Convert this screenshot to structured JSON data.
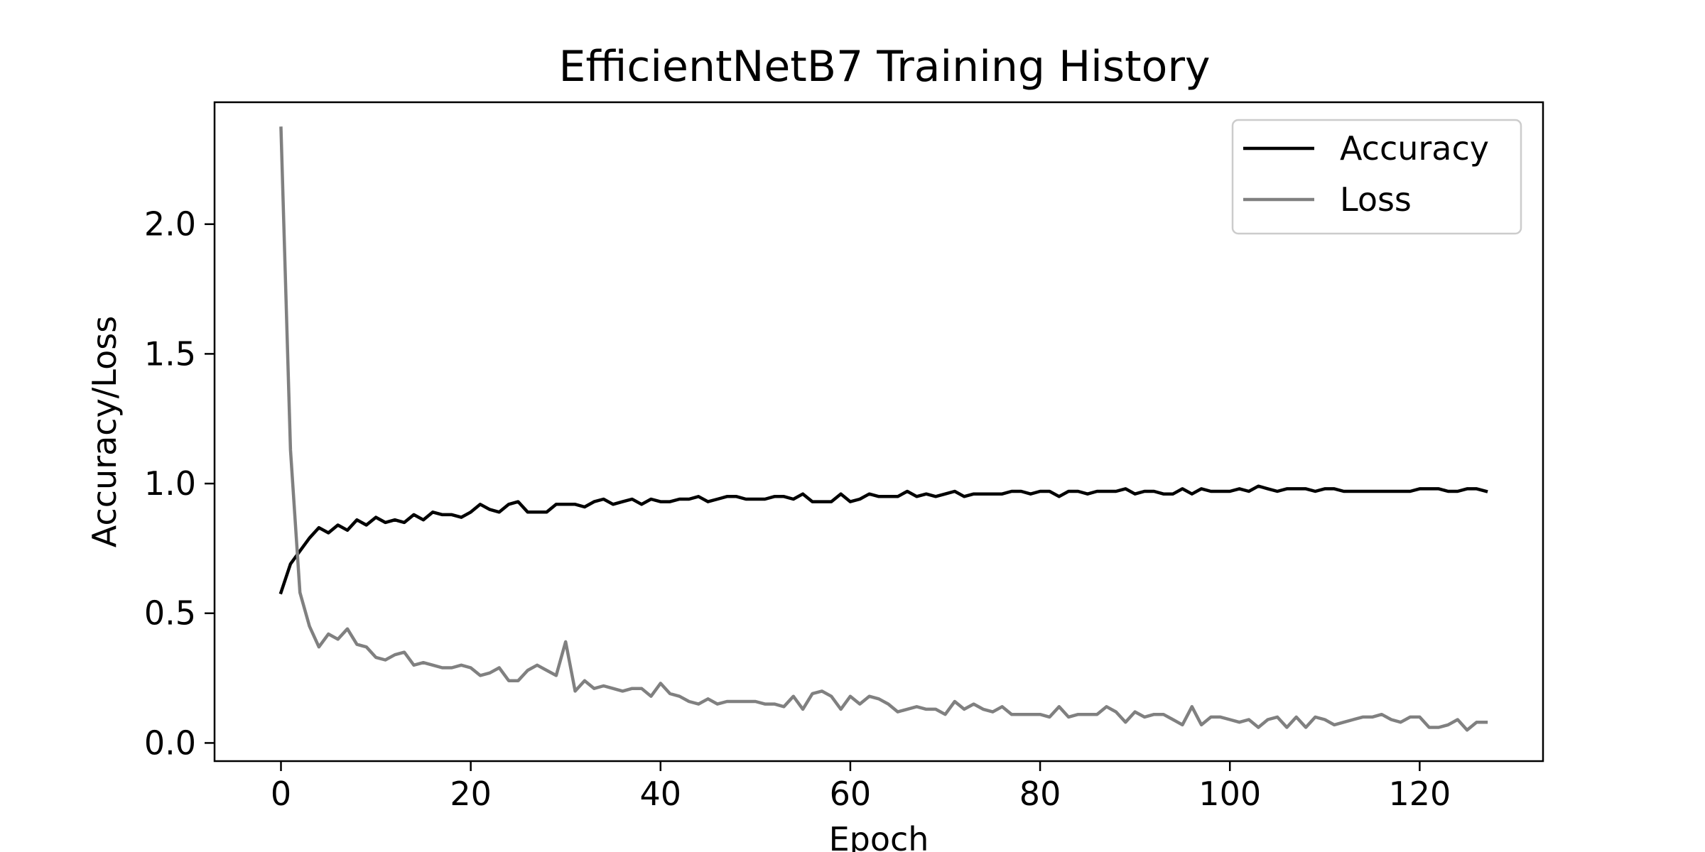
{
  "chart_data": {
    "type": "line",
    "title": "EfficientNetB7 Training History",
    "xlabel": "Epoch",
    "ylabel": "Accuracy/Loss",
    "xlim": [
      -7,
      133
    ],
    "ylim": [
      -0.07,
      2.47
    ],
    "xticks": [
      0,
      20,
      40,
      60,
      80,
      100,
      120
    ],
    "xtick_labels": [
      "0",
      "20",
      "40",
      "60",
      "80",
      "100",
      "120"
    ],
    "yticks": [
      0.0,
      0.5,
      1.0,
      1.5,
      2.0
    ],
    "ytick_labels": [
      "0.0",
      "0.5",
      "1.0",
      "1.5",
      "2.0"
    ],
    "grid": false,
    "legend_position": "top-right",
    "series": [
      {
        "name": "Accuracy",
        "color": "#000000",
        "values": [
          0.58,
          0.69,
          0.74,
          0.79,
          0.83,
          0.81,
          0.84,
          0.82,
          0.86,
          0.84,
          0.87,
          0.85,
          0.86,
          0.85,
          0.88,
          0.86,
          0.89,
          0.88,
          0.88,
          0.87,
          0.89,
          0.92,
          0.9,
          0.89,
          0.92,
          0.93,
          0.89,
          0.89,
          0.89,
          0.92,
          0.92,
          0.92,
          0.91,
          0.93,
          0.94,
          0.92,
          0.93,
          0.94,
          0.92,
          0.94,
          0.93,
          0.93,
          0.94,
          0.94,
          0.95,
          0.93,
          0.94,
          0.95,
          0.95,
          0.94,
          0.94,
          0.94,
          0.95,
          0.95,
          0.94,
          0.96,
          0.93,
          0.93,
          0.93,
          0.96,
          0.93,
          0.94,
          0.96,
          0.95,
          0.95,
          0.95,
          0.97,
          0.95,
          0.96,
          0.95,
          0.96,
          0.97,
          0.95,
          0.96,
          0.96,
          0.96,
          0.96,
          0.97,
          0.97,
          0.96,
          0.97,
          0.97,
          0.95,
          0.97,
          0.97,
          0.96,
          0.97,
          0.97,
          0.97,
          0.98,
          0.96,
          0.97,
          0.97,
          0.96,
          0.96,
          0.98,
          0.96,
          0.98,
          0.97,
          0.97,
          0.97,
          0.98,
          0.97,
          0.99,
          0.98,
          0.97,
          0.98,
          0.98,
          0.98,
          0.97,
          0.98,
          0.98,
          0.97,
          0.97,
          0.97,
          0.97,
          0.97,
          0.97,
          0.97,
          0.97,
          0.98,
          0.98,
          0.98,
          0.97,
          0.97,
          0.98,
          0.98,
          0.97
        ]
      },
      {
        "name": "Loss",
        "color": "#808080",
        "values": [
          2.37,
          1.13,
          0.58,
          0.45,
          0.37,
          0.42,
          0.4,
          0.44,
          0.38,
          0.37,
          0.33,
          0.32,
          0.34,
          0.35,
          0.3,
          0.31,
          0.3,
          0.29,
          0.29,
          0.3,
          0.29,
          0.26,
          0.27,
          0.29,
          0.24,
          0.24,
          0.28,
          0.3,
          0.28,
          0.26,
          0.39,
          0.2,
          0.24,
          0.21,
          0.22,
          0.21,
          0.2,
          0.21,
          0.21,
          0.18,
          0.23,
          0.19,
          0.18,
          0.16,
          0.15,
          0.17,
          0.15,
          0.16,
          0.16,
          0.16,
          0.16,
          0.15,
          0.15,
          0.14,
          0.18,
          0.13,
          0.19,
          0.2,
          0.18,
          0.13,
          0.18,
          0.15,
          0.18,
          0.17,
          0.15,
          0.12,
          0.13,
          0.14,
          0.13,
          0.13,
          0.11,
          0.16,
          0.13,
          0.15,
          0.13,
          0.12,
          0.14,
          0.11,
          0.11,
          0.11,
          0.11,
          0.1,
          0.14,
          0.1,
          0.11,
          0.11,
          0.11,
          0.14,
          0.12,
          0.08,
          0.12,
          0.1,
          0.11,
          0.11,
          0.09,
          0.07,
          0.14,
          0.07,
          0.1,
          0.1,
          0.09,
          0.08,
          0.09,
          0.06,
          0.09,
          0.1,
          0.06,
          0.1,
          0.06,
          0.1,
          0.09,
          0.07,
          0.08,
          0.09,
          0.1,
          0.1,
          0.11,
          0.09,
          0.08,
          0.1,
          0.1,
          0.06,
          0.06,
          0.07,
          0.09,
          0.05,
          0.08,
          0.08
        ]
      }
    ]
  }
}
